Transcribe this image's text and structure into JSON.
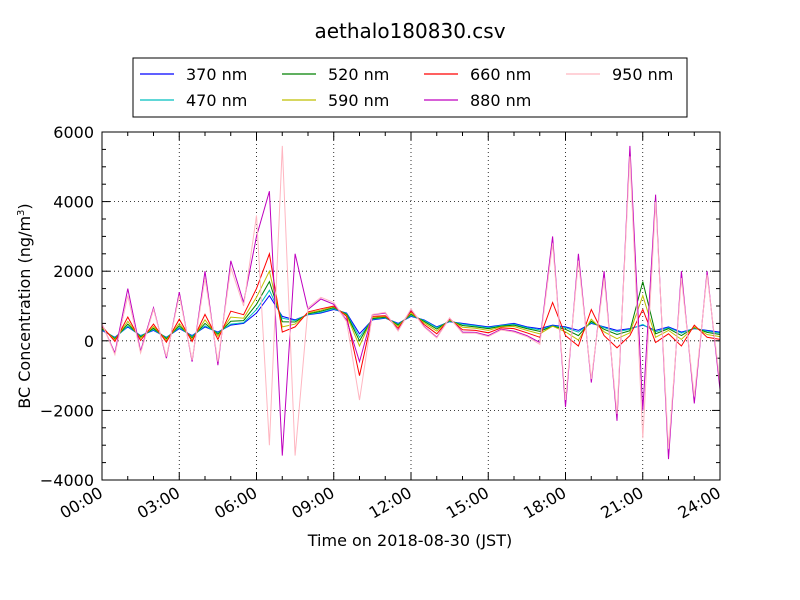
{
  "chart_data": {
    "type": "line",
    "title": "aethalo180830.csv",
    "xlabel": "Time on 2018-08-30 (JST)",
    "ylabel": "BC Concentration (ng/m³)",
    "ylabel_main": "BC Concentration (ng/m",
    "ylabel_sup": "3",
    "ylabel_end": ")",
    "xlim_hours": [
      0,
      24
    ],
    "ylim": [
      -4000,
      6000
    ],
    "x_ticks": [
      {
        "hour": 0,
        "label": "00:00"
      },
      {
        "hour": 3,
        "label": "03:00"
      },
      {
        "hour": 6,
        "label": "06:00"
      },
      {
        "hour": 9,
        "label": "09:00"
      },
      {
        "hour": 12,
        "label": "12:00"
      },
      {
        "hour": 15,
        "label": "15:00"
      },
      {
        "hour": 18,
        "label": "18:00"
      },
      {
        "hour": 21,
        "label": "21:00"
      },
      {
        "hour": 24,
        "label": "24:00"
      }
    ],
    "y_ticks": [
      {
        "value": -4000,
        "label": "−4000"
      },
      {
        "value": -2000,
        "label": "−2000"
      },
      {
        "value": 0,
        "label": "0"
      },
      {
        "value": 2000,
        "label": "2000"
      },
      {
        "value": 4000,
        "label": "4000"
      },
      {
        "value": 6000,
        "label": "6000"
      }
    ],
    "grid": true,
    "legend_position": "top",
    "series": [
      {
        "name": "370 nm",
        "color": "#0000ff"
      },
      {
        "name": "470 nm",
        "color": "#00bfbf"
      },
      {
        "name": "520 nm",
        "color": "#008000"
      },
      {
        "name": "590 nm",
        "color": "#bfbf00"
      },
      {
        "name": "660 nm",
        "color": "#ff0000"
      },
      {
        "name": "880 nm",
        "color": "#bf00bf"
      },
      {
        "name": "950 nm",
        "color": "#ffb6c1"
      }
    ],
    "x_hours": [
      0,
      0.5,
      1,
      1.5,
      2,
      2.5,
      3,
      3.5,
      4,
      4.5,
      5,
      5.5,
      6,
      6.5,
      7,
      7.5,
      8,
      8.5,
      9,
      9.5,
      10,
      10.5,
      11,
      11.5,
      12,
      12.5,
      13,
      13.5,
      14,
      14.5,
      15,
      15.5,
      16,
      16.5,
      17,
      17.5,
      18,
      18.5,
      19,
      19.5,
      20,
      20.5,
      21,
      21.5,
      22,
      22.5,
      23,
      23.5,
      24
    ],
    "series_values": [
      [
        300,
        100,
        400,
        150,
        300,
        100,
        350,
        150,
        400,
        250,
        450,
        500,
        800,
        1300,
        700,
        600,
        750,
        800,
        900,
        800,
        200,
        600,
        650,
        500,
        700,
        600,
        400,
        550,
        500,
        450,
        400,
        450,
        500,
        400,
        350,
        450,
        400,
        300,
        500,
        400,
        300,
        350,
        450,
        300,
        400,
        250,
        350,
        300,
        250
      ],
      [
        320,
        90,
        420,
        140,
        320,
        90,
        380,
        130,
        430,
        230,
        480,
        520,
        900,
        1450,
        650,
        580,
        760,
        820,
        920,
        780,
        100,
        620,
        660,
        480,
        720,
        590,
        380,
        560,
        480,
        430,
        380,
        440,
        480,
        380,
        320,
        430,
        380,
        250,
        520,
        380,
        260,
        330,
        470,
        260,
        380,
        220,
        360,
        280,
        220
      ],
      [
        350,
        60,
        480,
        110,
        360,
        60,
        430,
        90,
        500,
        190,
        560,
        580,
        1050,
        1700,
        550,
        540,
        780,
        850,
        950,
        760,
        0,
        640,
        680,
        450,
        760,
        560,
        340,
        580,
        440,
        400,
        350,
        420,
        450,
        350,
        270,
        420,
        330,
        150,
        560,
        330,
        180,
        290,
        1700,
        200,
        350,
        150,
        380,
        240,
        180
      ],
      [
        380,
        30,
        560,
        70,
        410,
        20,
        500,
        40,
        600,
        130,
        680,
        650,
        1250,
        2000,
        400,
        480,
        800,
        880,
        980,
        730,
        -150,
        670,
        700,
        410,
        800,
        520,
        280,
        600,
        390,
        360,
        300,
        400,
        410,
        300,
        200,
        420,
        260,
        20,
        620,
        260,
        60,
        230,
        1300,
        100,
        300,
        40,
        400,
        180,
        120
      ],
      [
        420,
        -20,
        680,
        10,
        480,
        -40,
        620,
        -20,
        760,
        40,
        850,
        750,
        1500,
        2500,
        250,
        400,
        830,
        920,
        1000,
        700,
        -1000,
        700,
        720,
        360,
        850,
        470,
        200,
        630,
        320,
        300,
        230,
        370,
        350,
        230,
        100,
        1100,
        150,
        -150,
        900,
        150,
        -200,
        150,
        900,
        -50,
        200,
        -150,
        450,
        100,
        40
      ],
      [
        480,
        -350,
        1500,
        -300,
        950,
        -500,
        1400,
        -600,
        2000,
        -700,
        2300,
        1100,
        3000,
        4300,
        -3300,
        2500,
        900,
        1200,
        1050,
        600,
        -600,
        750,
        800,
        300,
        900,
        420,
        100,
        650,
        250,
        240,
        150,
        330,
        280,
        150,
        -50,
        3000,
        -1900,
        2500,
        -1200,
        2000,
        -2300,
        5600,
        -2000,
        4200,
        -3400,
        2000,
        -1800,
        2000,
        -1400
      ],
      [
        500,
        -400,
        1300,
        -350,
        900,
        -450,
        1300,
        -550,
        1800,
        -600,
        2100,
        1000,
        3600,
        -3000,
        5600,
        -3300,
        950,
        1250,
        1100,
        550,
        -1700,
        760,
        820,
        280,
        920,
        400,
        80,
        660,
        220,
        220,
        120,
        310,
        250,
        120,
        -100,
        2800,
        -1700,
        2300,
        -1100,
        1800,
        -2100,
        5300,
        -2800,
        4000,
        -3100,
        1800,
        -1600,
        1900,
        -1200
      ]
    ]
  }
}
